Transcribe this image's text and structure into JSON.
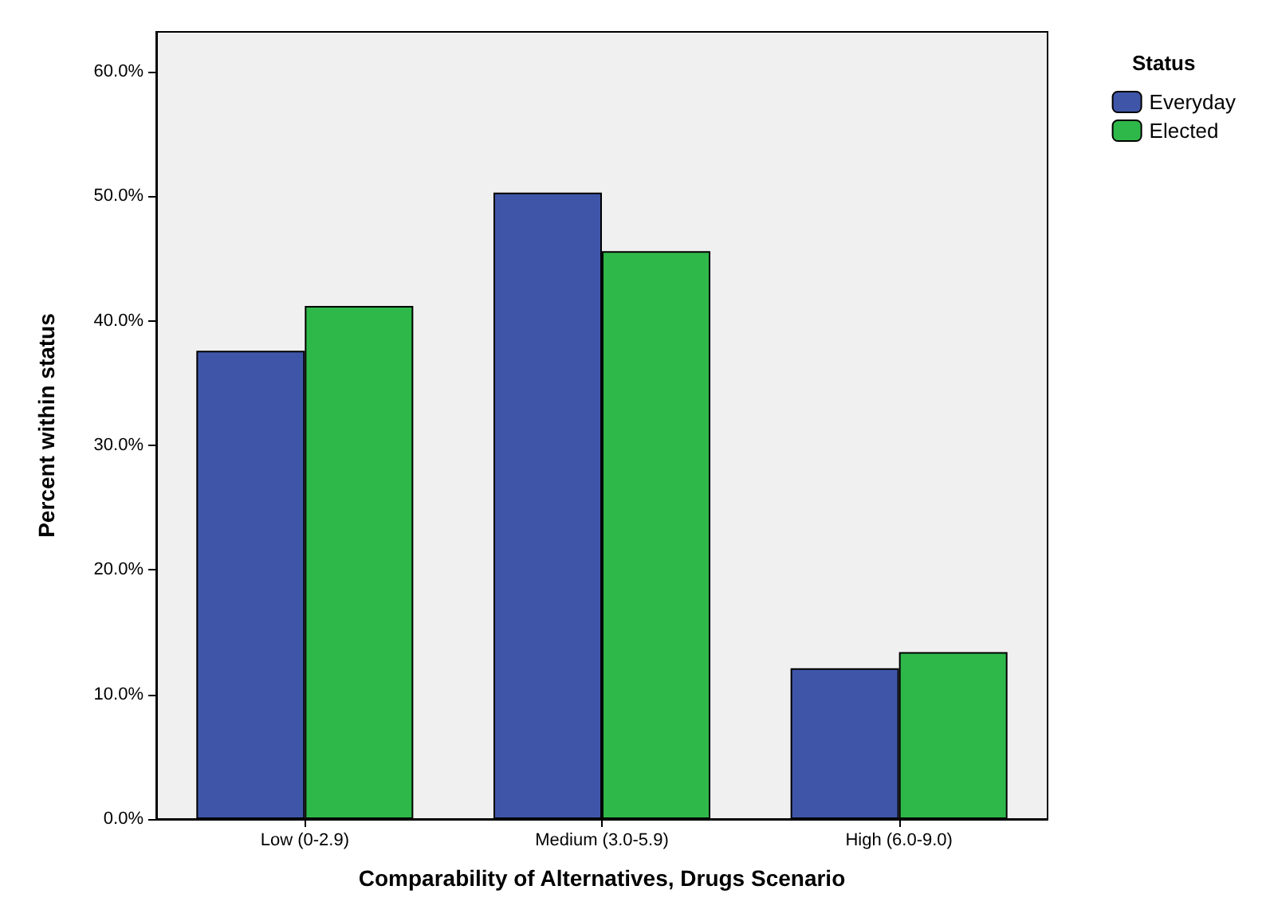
{
  "chart_data": {
    "type": "bar",
    "xlabel": "Comparability of Alternatives, Drugs Scenario",
    "ylabel": "Percent within status",
    "legend_title": "Status",
    "categories": [
      "Low (0-2.9)",
      "Medium (3.0-5.9)",
      "High (6.0-9.0)"
    ],
    "series": [
      {
        "name": "Everyday",
        "color": "#3f56a8",
        "values": [
          37.6,
          50.3,
          12.1
        ]
      },
      {
        "name": "Elected",
        "color": "#2fb84a",
        "values": [
          41.2,
          45.6,
          13.4
        ]
      }
    ],
    "ylim": [
      0,
      63.2
    ],
    "yticks": [
      {
        "value": 0,
        "label": "0.0%"
      },
      {
        "value": 10,
        "label": "10.0%"
      },
      {
        "value": 20,
        "label": "20.0%"
      },
      {
        "value": 30,
        "label": "30.0%"
      },
      {
        "value": 40,
        "label": "40.0%"
      },
      {
        "value": 50,
        "label": "50.0%"
      },
      {
        "value": 60,
        "label": "60.0%"
      }
    ],
    "grid": false,
    "legend": "top right"
  }
}
